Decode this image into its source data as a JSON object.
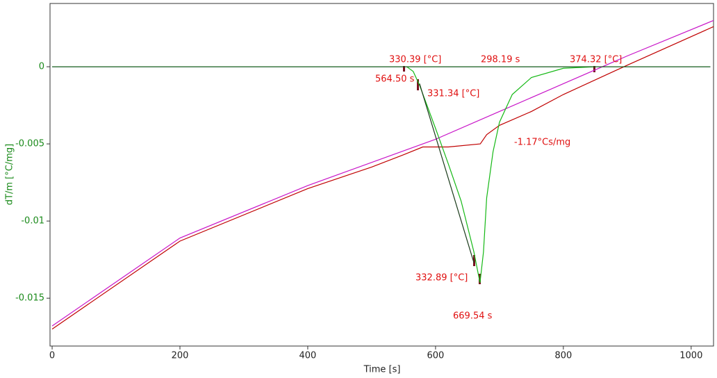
{
  "chart_data": {
    "type": "line",
    "x_label": "Time [s]",
    "y_label": "dT/m  [°C/mg]",
    "xlim": [
      -3.3,
      1035
    ],
    "ylim": [
      -0.0181,
      0.0041
    ],
    "xticks": [
      0,
      200,
      400,
      600,
      800,
      1000
    ],
    "yticks": [
      0,
      -0.005,
      -0.01,
      -0.015
    ],
    "series": [
      {
        "color": "#1a1aa0",
        "x": [
          0,
          1030
        ],
        "values": [
          0,
          0
        ]
      },
      {
        "color": "#c814c8",
        "x": [
          0,
          200,
          400,
          600,
          700,
          800,
          900,
          1035
        ],
        "values": [
          -0.0168,
          -0.0111,
          -0.0077,
          -0.0047,
          -0.0029,
          -0.0011,
          0.0007,
          0.003
        ]
      },
      {
        "color": "#c00000",
        "x": [
          0,
          200,
          400,
          500,
          550,
          580,
          620,
          670,
          680,
          700,
          750,
          800,
          900,
          1035
        ],
        "values": [
          -0.017,
          -0.0113,
          -0.0079,
          -0.0065,
          -0.0057,
          -0.0052,
          -0.0052,
          -0.005,
          -0.0044,
          -0.0038,
          -0.0029,
          -0.0018,
          0.0001,
          0.0026
        ]
      },
      {
        "color": "#14b814",
        "x": [
          555,
          565,
          575,
          600,
          620,
          640,
          660,
          669.54,
          675,
          680,
          690,
          700,
          720,
          750,
          800,
          850
        ],
        "values": [
          0,
          -0.0003,
          -0.0012,
          -0.004,
          -0.0063,
          -0.0087,
          -0.012,
          -0.014,
          -0.012,
          -0.0085,
          -0.0055,
          -0.0036,
          -0.0018,
          -0.0007,
          -0.0001,
          0
        ]
      },
      {
        "color": "#0a5a0a",
        "x": [
          0,
          1030
        ],
        "values": [
          0,
          0
        ]
      },
      {
        "color": "#1a3a1a",
        "x": [
          575,
          660
        ],
        "values": [
          -0.0011,
          -0.0127
        ]
      }
    ],
    "annotations": [
      "330.39 [°C]",
      "298.19 s",
      "374.32 [°C]",
      "564.50 s",
      "331.34 [°C]",
      "-1.17°Cs/mg",
      "332.89 [°C]",
      "669.54 s"
    ]
  }
}
